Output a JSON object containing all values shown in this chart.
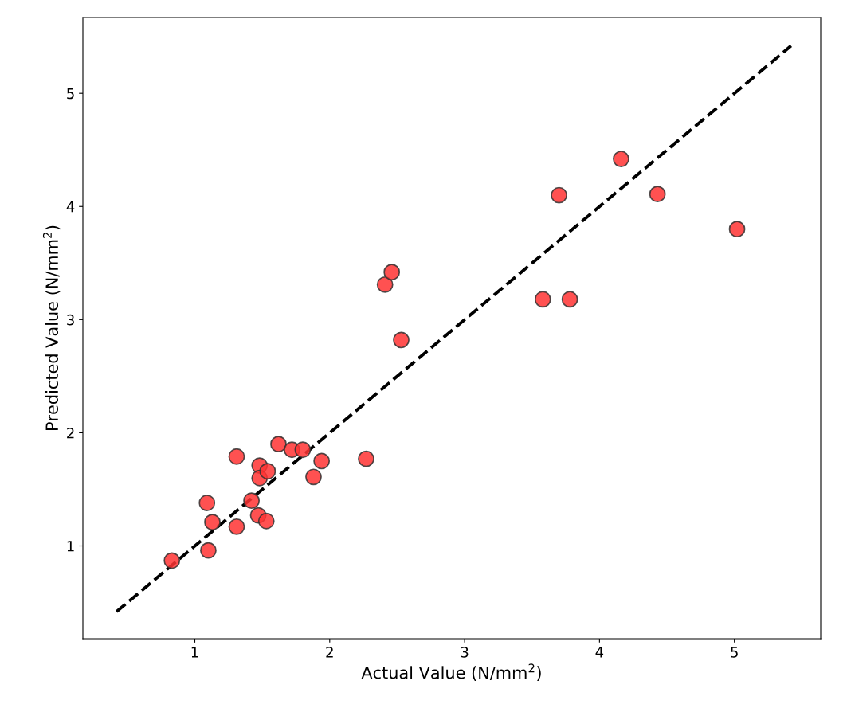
{
  "chart_data": {
    "type": "scatter",
    "xlabel": "Actual Value (N/mm$^{2}$)",
    "ylabel": "Predicted Value (N/mm$^{2}$)",
    "xlim": [
      0.17,
      5.64
    ],
    "ylim": [
      0.18,
      5.67
    ],
    "xticks": [
      1,
      2,
      3,
      4,
      5
    ],
    "yticks": [
      1,
      2,
      3,
      4,
      5
    ],
    "grid": false,
    "legend": false,
    "series": [
      {
        "type": "line",
        "color": "#000000",
        "line_style": "dashed",
        "marker": "none",
        "x": [
          0.42,
          5.42
        ],
        "values": [
          0.42,
          5.42
        ]
      },
      {
        "color": "#ff3333",
        "marker": "circle",
        "x": [
          0.83,
          1.09,
          1.1,
          1.13,
          1.31,
          1.31,
          1.42,
          1.47,
          1.48,
          1.48,
          1.53,
          1.54,
          1.62,
          1.72,
          1.8,
          1.88,
          1.94,
          2.27,
          2.41,
          2.46,
          2.53,
          3.58,
          3.7,
          3.78,
          4.16,
          4.43,
          5.02
        ],
        "values": [
          0.87,
          1.38,
          0.96,
          1.21,
          1.79,
          1.17,
          1.4,
          1.27,
          1.71,
          1.6,
          1.22,
          1.66,
          1.9,
          1.85,
          1.85,
          1.61,
          1.75,
          1.77,
          3.31,
          3.42,
          2.82,
          3.18,
          4.1,
          3.18,
          4.42,
          4.11,
          3.8
        ]
      }
    ]
  }
}
